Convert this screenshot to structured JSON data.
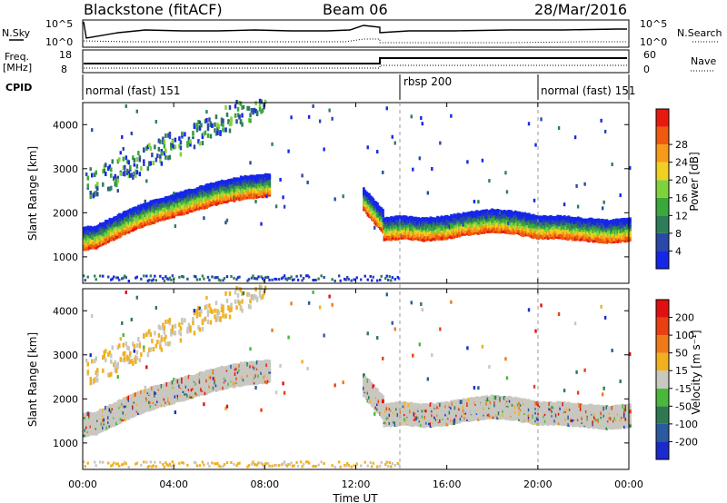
{
  "header": {
    "station": "Blackstone (fitACF)",
    "beam": "Beam 06",
    "date": "28/Mar/2016"
  },
  "panels": {
    "nsky_label": "N.Sky",
    "nsearch_label": "N.Search",
    "noise_ticks_left": [
      "10^5",
      "10^0"
    ],
    "noise_ticks_right": [
      "10^5",
      "10^0"
    ],
    "freq_label": [
      "Freq.",
      "[MHz]"
    ],
    "freq_ticks": [
      "18",
      "8"
    ],
    "nave_label": "Nave",
    "nave_ticks": [
      "60",
      "0"
    ],
    "cpid_label": "CPID",
    "cpid_segments": [
      {
        "label": "normal (fast) 151",
        "start_hour": 0,
        "end_hour": 13.2
      },
      {
        "label": "rbsp 200",
        "start_hour": 13.2,
        "end_hour": 20
      },
      {
        "label": "normal (fast) 151",
        "start_hour": 20,
        "end_hour": 24
      }
    ]
  },
  "chart_data": [
    {
      "type": "heatmap",
      "title": "",
      "xlabel": "Time UT",
      "ylabel": "Slant Range [km]",
      "xlim": [
        0,
        24
      ],
      "ylim": [
        400,
        4500
      ],
      "x_tick_labels": [
        "00:00",
        "04:00",
        "08:00",
        "12:00",
        "16:00",
        "20:00",
        "00:00"
      ],
      "y_ticks": [
        1000,
        2000,
        3000,
        4000
      ],
      "y_tick_labels": [
        "1000",
        "2000",
        "3000",
        "4000"
      ],
      "colorbar": {
        "label": "Power [dB]",
        "ticks": [
          "4",
          "8",
          "12",
          "16",
          "20",
          "24",
          "28"
        ],
        "colors": [
          "#1526e8",
          "#2a48a8",
          "#2e7d5a",
          "#3aa83c",
          "#7fd23a",
          "#f0d020",
          "#f79a18",
          "#f05a10",
          "#e81a10"
        ]
      },
      "features": [
        {
          "name": "main_band_before_1300",
          "x": [
            0,
            0.5,
            1,
            2,
            3,
            4,
            5,
            6,
            7,
            8
          ],
          "y": [
            1150,
            1170,
            1300,
            1550,
            1750,
            1900,
            2050,
            2200,
            2300,
            2350
          ],
          "peak_db": 28
        },
        {
          "name": "main_band_after_1300",
          "x": [
            13,
            14,
            15,
            16,
            17,
            18,
            19,
            20,
            21,
            22,
            23,
            24
          ],
          "y": [
            1350,
            1400,
            1350,
            1400,
            1500,
            1550,
            1500,
            1400,
            1400,
            1350,
            1300,
            1350
          ],
          "peak_db": 28
        }
      ]
    },
    {
      "type": "heatmap",
      "title": "",
      "xlabel": "Time UT",
      "ylabel": "Slant Range [km]",
      "xlim": [
        0,
        24
      ],
      "ylim": [
        400,
        4500
      ],
      "x_tick_labels": [
        "00:00",
        "04:00",
        "08:00",
        "12:00",
        "16:00",
        "20:00",
        "00:00"
      ],
      "y_ticks": [
        1000,
        2000,
        3000,
        4000
      ],
      "y_tick_labels": [
        "1000",
        "2000",
        "3000",
        "4000"
      ],
      "colorbar": {
        "label": "Velocity [m s⁻¹]",
        "ticks": [
          "200",
          "100",
          "50",
          "15",
          "-15",
          "-50",
          "-100",
          "-200"
        ],
        "colors": [
          "#1a2acc",
          "#2a5aa0",
          "#2e7a50",
          "#4ab83a",
          "#c8c8c0",
          "#f0b020",
          "#f07818",
          "#e84010",
          "#e01010"
        ]
      }
    }
  ]
}
